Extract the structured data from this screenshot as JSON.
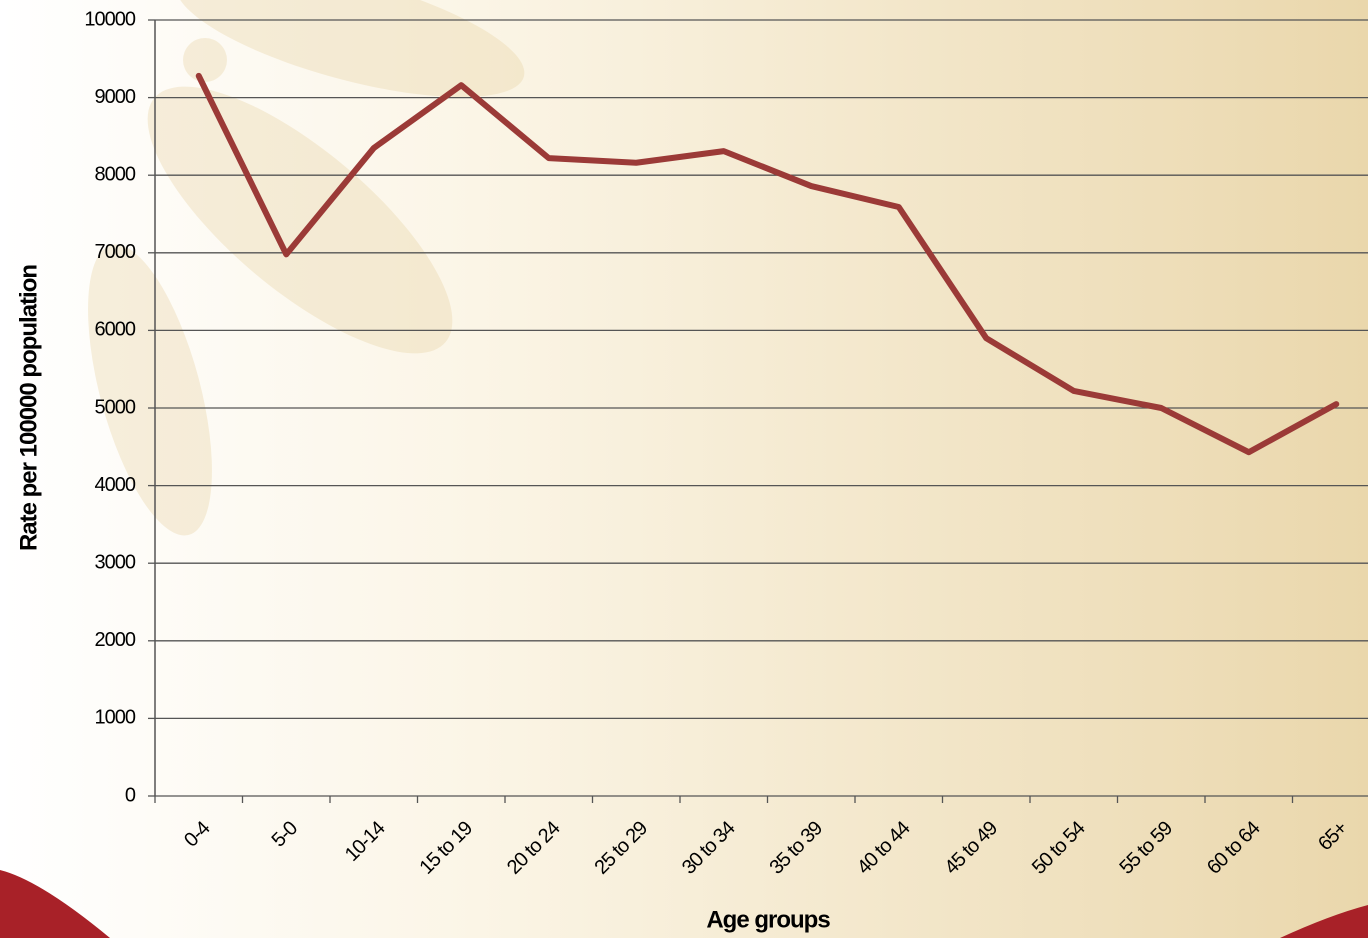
{
  "chart_data": {
    "type": "line",
    "x_label": "Age groups",
    "y_label": "Rate per 100000 population",
    "categories": [
      "0-4",
      "5-0",
      "10-14",
      "15 to 19",
      "20 to 24",
      "25 to 29",
      "30 to 34",
      "35 to 39",
      "40 to 44",
      "45 to 49",
      "50 to 54",
      "55 to 59",
      "60 to 64",
      "65+"
    ],
    "series": [
      {
        "color": "#9b3a37",
        "values": [
          9280,
          6980,
          8350,
          9160,
          8220,
          8160,
          8310,
          7860,
          7590,
          5900,
          5220,
          5000,
          4430,
          5050
        ]
      }
    ],
    "ylim": [
      0,
      10000
    ],
    "yticks": [
      0,
      1000,
      2000,
      3000,
      4000,
      5000,
      6000,
      7000,
      8000,
      9000,
      10000
    ],
    "grid": true
  }
}
